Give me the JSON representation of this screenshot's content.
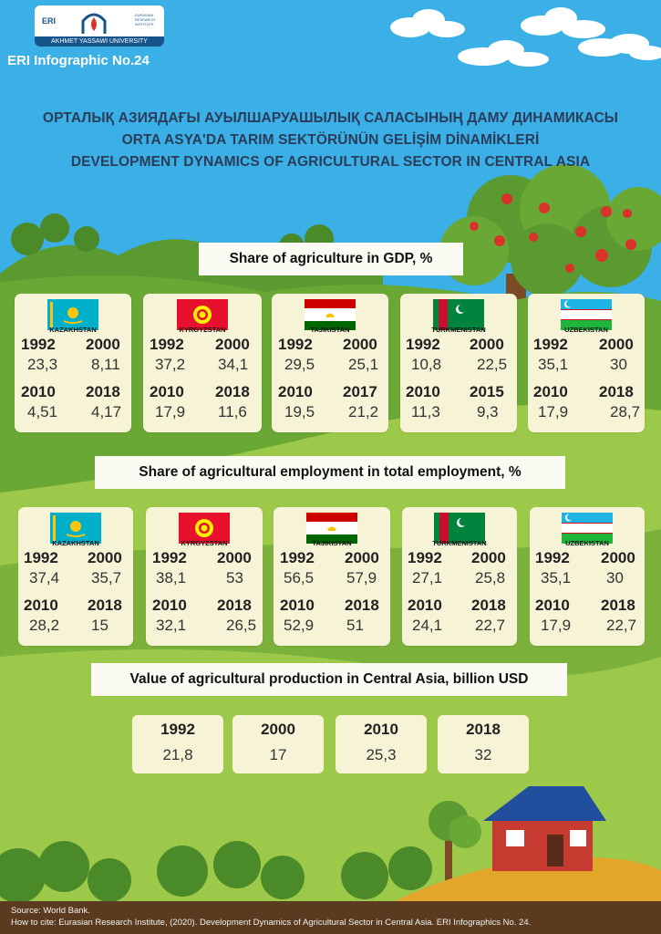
{
  "logo": {
    "short": "ERI",
    "sub": "EURASIAN RESEARCH INSTITUTE",
    "university": "AKHMET YASSAWI UNIVERSITY"
  },
  "infographic_label": "ERI Infographic No.24",
  "titles": {
    "kazakh": "ОРТАЛЫҚ АЗИЯДАҒЫ АУЫЛШАРУАШЫЛЫҚ САЛАСЫНЫҢ ДАМУ ДИНАМИКАСЫ",
    "turkish": "ORTA ASYA'DA TARIM SEKTÖRÜNÜN GELİŞİM DİNAMİKLERİ",
    "english": "DEVELOPMENT DYNAMICS OF AGRICULTURAL SECTOR IN CENTRAL ASIA"
  },
  "gdp": {
    "title": "Share of agriculture in GDP, %",
    "countries": [
      {
        "name": "KAZAKHSTAN",
        "flag": "kazakhstan-flag",
        "entries": [
          {
            "year": "1992",
            "value": "23,3"
          },
          {
            "year": "2000",
            "value": "8,11"
          },
          {
            "year": "2010",
            "value": "4,51"
          },
          {
            "year": "2018",
            "value": "4,17"
          }
        ]
      },
      {
        "name": "KYRGYZSTAN",
        "flag": "kyrgyzstan-flag",
        "entries": [
          {
            "year": "1992",
            "value": "37,2"
          },
          {
            "year": "2000",
            "value": "34,1"
          },
          {
            "year": "2010",
            "value": "17,9"
          },
          {
            "year": "2018",
            "value": "11,6"
          }
        ]
      },
      {
        "name": "TAJIKISTAN",
        "flag": "tajikistan-flag",
        "entries": [
          {
            "year": "1992",
            "value": "29,5"
          },
          {
            "year": "2000",
            "value": "25,1"
          },
          {
            "year": "2010",
            "value": "19,5"
          },
          {
            "year": "2017",
            "value": "21,2"
          }
        ]
      },
      {
        "name": "TURKMENISTAN",
        "flag": "turkmenistan-flag",
        "entries": [
          {
            "year": "1992",
            "value": "10,8"
          },
          {
            "year": "2000",
            "value": "22,5"
          },
          {
            "year": "2010",
            "value": "11,3"
          },
          {
            "year": "2015",
            "value": "9,3"
          }
        ]
      },
      {
        "name": "UZBEKISTAN",
        "flag": "uzbekistan-flag",
        "entries": [
          {
            "year": "1992",
            "value": "35,1"
          },
          {
            "year": "2000",
            "value": "30"
          },
          {
            "year": "2010",
            "value": "17,9"
          },
          {
            "year": "2018",
            "value": "28,7"
          }
        ]
      }
    ]
  },
  "employment": {
    "title": "Share of agricultural employment in total employment, %",
    "countries": [
      {
        "name": "KAZAKHSTAN",
        "flag": "kazakhstan-flag",
        "entries": [
          {
            "year": "1992",
            "value": "37,4"
          },
          {
            "year": "2000",
            "value": "35,7"
          },
          {
            "year": "2010",
            "value": "28,2"
          },
          {
            "year": "2018",
            "value": "15"
          }
        ]
      },
      {
        "name": "KYRGYZSTAN",
        "flag": "kyrgyzstan-flag",
        "entries": [
          {
            "year": "1992",
            "value": "38,1"
          },
          {
            "year": "2000",
            "value": "53"
          },
          {
            "year": "2010",
            "value": "32,1"
          },
          {
            "year": "2018",
            "value": "26,5"
          }
        ]
      },
      {
        "name": "TAJIKISTAN",
        "flag": "tajikistan-flag",
        "entries": [
          {
            "year": "1992",
            "value": "56,5"
          },
          {
            "year": "2000",
            "value": "57,9"
          },
          {
            "year": "2010",
            "value": "52,9"
          },
          {
            "year": "2018",
            "value": "51"
          }
        ]
      },
      {
        "name": "TURKMENISTAN",
        "flag": "turkmenistan-flag",
        "entries": [
          {
            "year": "1992",
            "value": "27,1"
          },
          {
            "year": "2000",
            "value": "25,8"
          },
          {
            "year": "2010",
            "value": "24,1"
          },
          {
            "year": "2018",
            "value": "22,7"
          }
        ]
      },
      {
        "name": "UZBEKISTAN",
        "flag": "uzbekistan-flag",
        "entries": [
          {
            "year": "1992",
            "value": "35,1"
          },
          {
            "year": "2000",
            "value": "30"
          },
          {
            "year": "2010",
            "value": "17,9"
          },
          {
            "year": "2018",
            "value": "22,7"
          }
        ]
      }
    ]
  },
  "production": {
    "title": "Value of agricultural production in Central Asia, billion USD",
    "items": [
      {
        "year": "1992",
        "value": "21,8"
      },
      {
        "year": "2000",
        "value": "17"
      },
      {
        "year": "2010",
        "value": "25,3"
      },
      {
        "year": "2018",
        "value": "32"
      }
    ]
  },
  "footer": {
    "source": "Source:  World Bank.",
    "citation": "How to cite: Eurasian Research Institute, (2020). Development Dynamics of Agricultural Sector in Central Asia. ERI Infographics No. 24."
  },
  "colors": {
    "sky": "#3ab0e6",
    "hill_dark": "#6aa835",
    "hill_light": "#9cc94a",
    "card": "#f7f3d6",
    "title_text": "#2b3c5a",
    "footer": "#5a3b1f"
  }
}
